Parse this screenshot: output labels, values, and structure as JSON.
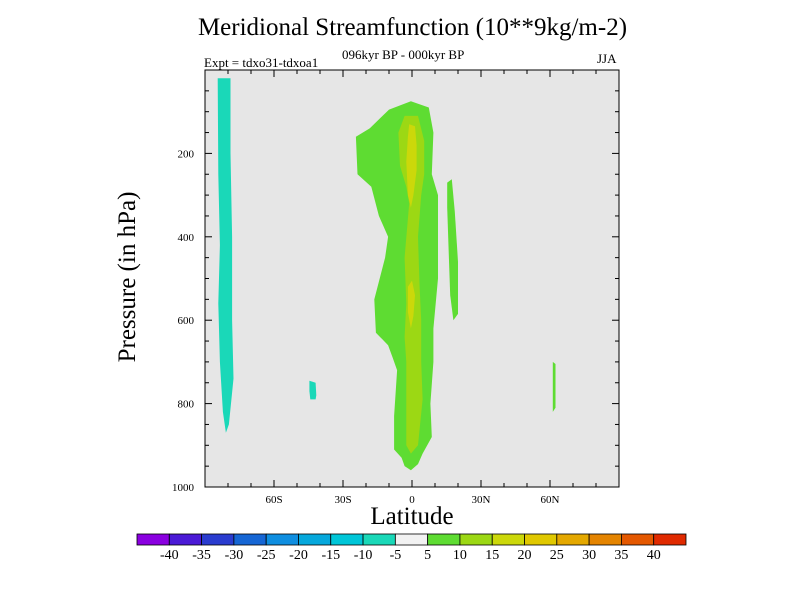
{
  "chart_data": {
    "type": "heatmap",
    "subtype": "filled-contour",
    "title": "Meridional Streamfunction (10**9kg/m-2)",
    "subtitle": "096kyr BP - 000kyr BP",
    "experiment_label": "Expt = tdxo31-tdxoa1",
    "season": "JJA",
    "xlabel": "Latitude",
    "ylabel": "Pressure (in hPa)",
    "xlim": [
      -90,
      90
    ],
    "ylim": [
      1000,
      0
    ],
    "x_ticks": [
      {
        "value": -60,
        "label": "60S"
      },
      {
        "value": -30,
        "label": "30S"
      },
      {
        "value": 0,
        "label": "0"
      },
      {
        "value": 30,
        "label": "30N"
      },
      {
        "value": 60,
        "label": "60N"
      }
    ],
    "y_ticks": [
      {
        "value": 200,
        "label": "200"
      },
      {
        "value": 400,
        "label": "400"
      },
      {
        "value": 600,
        "label": "600"
      },
      {
        "value": 800,
        "label": "800"
      },
      {
        "value": 1000,
        "label": "1000"
      }
    ],
    "colorbar": {
      "levels": [
        -40,
        -35,
        -30,
        -25,
        -20,
        -15,
        -10,
        -5,
        5,
        10,
        15,
        20,
        25,
        30,
        35,
        40
      ],
      "labels": [
        "-40",
        "-35",
        "-30",
        "-25",
        "-20",
        "-15",
        "-10",
        "-5",
        "5",
        "10",
        "15",
        "20",
        "25",
        "30",
        "35",
        "40"
      ],
      "colors": [
        "#8a00e0",
        "#4b1ad6",
        "#2a3ccf",
        "#1666d4",
        "#0f8ee0",
        "#06a8dc",
        "#00c6d8",
        "#1ad8b8",
        "#f2f2f2",
        "#5edc32",
        "#9cd814",
        "#ccd80a",
        "#e0c800",
        "#e4a800",
        "#e48400",
        "#e45800",
        "#e02a00"
      ]
    },
    "background_color": "#e6e6e6",
    "regions": [
      {
        "name": "SH polar negative cell",
        "level_range": [
          -10,
          -5
        ],
        "color": "#1ad8b8",
        "outline": [
          [
            -84.5,
            20
          ],
          [
            -78.9,
            20
          ],
          [
            -78.9,
            200
          ],
          [
            -78.2,
            400
          ],
          [
            -78.2,
            600
          ],
          [
            -77.6,
            740
          ],
          [
            -79.6,
            850
          ],
          [
            -80.9,
            870
          ],
          [
            -82.2,
            820
          ],
          [
            -83.5,
            700
          ],
          [
            -84.2,
            560
          ],
          [
            -83.5,
            420
          ],
          [
            -84.2,
            250
          ]
        ]
      },
      {
        "name": "SH midlatitude small negative patch",
        "level_range": [
          -10,
          -5
        ],
        "color": "#1ad8b8",
        "outline": [
          [
            -44.6,
            745
          ],
          [
            -41.9,
            750
          ],
          [
            -41.6,
            780
          ],
          [
            -41.9,
            790
          ],
          [
            -44.2,
            790
          ],
          [
            -44.6,
            770
          ]
        ]
      },
      {
        "name": "equatorial positive cell",
        "level_range": [
          5,
          10
        ],
        "color": "#5edc32",
        "outline": [
          [
            -10,
            95
          ],
          [
            -0.5,
            75
          ],
          [
            7.3,
            90
          ],
          [
            9.3,
            150
          ],
          [
            8.6,
            250
          ],
          [
            11.3,
            300
          ],
          [
            11.3,
            500
          ],
          [
            9.3,
            620
          ],
          [
            9.3,
            700
          ],
          [
            8,
            800
          ],
          [
            8.6,
            880
          ],
          [
            4.6,
            920
          ],
          [
            2.6,
            945
          ],
          [
            -0.5,
            960
          ],
          [
            -3.2,
            950
          ],
          [
            -4.5,
            930
          ],
          [
            -7.8,
            910
          ],
          [
            -7.8,
            830
          ],
          [
            -6.5,
            720
          ],
          [
            -8.4,
            690
          ],
          [
            -10.4,
            660
          ],
          [
            -15.7,
            630
          ],
          [
            -16.4,
            550
          ],
          [
            -11.7,
            450
          ],
          [
            -10.4,
            400
          ],
          [
            -14.4,
            350
          ],
          [
            -17.7,
            280
          ],
          [
            -23.7,
            250
          ],
          [
            -24.4,
            160
          ],
          [
            -18.4,
            140
          ]
        ]
      },
      {
        "name": "equatorial core",
        "level_range": [
          10,
          15
        ],
        "color": "#9cd814",
        "outline": [
          [
            -3.2,
            110
          ],
          [
            2.6,
            110
          ],
          [
            5.3,
            170
          ],
          [
            5.3,
            250
          ],
          [
            4,
            300
          ],
          [
            2.6,
            400
          ],
          [
            3.3,
            520
          ],
          [
            4,
            600
          ],
          [
            4,
            700
          ],
          [
            4.6,
            790
          ],
          [
            2.6,
            900
          ],
          [
            -0.5,
            920
          ],
          [
            -2.5,
            900
          ],
          [
            -2.5,
            700
          ],
          [
            -3.2,
            640
          ],
          [
            -2.5,
            560
          ],
          [
            -3.2,
            450
          ],
          [
            -1.2,
            320
          ],
          [
            -2.5,
            280
          ],
          [
            -5.2,
            230
          ],
          [
            -5.9,
            150
          ]
        ]
      },
      {
        "name": "equatorial upper maximum",
        "level_range": [
          15,
          20
        ],
        "color": "#ccd80a",
        "outline": [
          [
            -1.2,
            130
          ],
          [
            1.3,
            135
          ],
          [
            2,
            180
          ],
          [
            2,
            240
          ],
          [
            0.6,
            300
          ],
          [
            -0.5,
            330
          ],
          [
            -1.8,
            300
          ],
          [
            -2.5,
            220
          ],
          [
            -1.8,
            160
          ]
        ]
      },
      {
        "name": "equatorial mid-level maximum",
        "level_range": [
          15,
          20
        ],
        "color": "#ccd80a",
        "outline": [
          [
            -1.8,
            520
          ],
          [
            0,
            505
          ],
          [
            1.3,
            540
          ],
          [
            0.6,
            590
          ],
          [
            -0.5,
            620
          ],
          [
            -1.8,
            580
          ]
        ]
      },
      {
        "name": "NH subtropical positive band",
        "level_range": [
          5,
          10
        ],
        "color": "#5edc32",
        "outline": [
          [
            15.3,
            270
          ],
          [
            17.3,
            262
          ],
          [
            18.6,
            340
          ],
          [
            20,
            460
          ],
          [
            20,
            585
          ],
          [
            18,
            600
          ],
          [
            16.6,
            540
          ],
          [
            15.9,
            430
          ],
          [
            15.3,
            330
          ]
        ]
      },
      {
        "name": "NH midlatitude thin positive sliver",
        "level_range": [
          5,
          10
        ],
        "color": "#5edc32",
        "outline": [
          [
            61.2,
            700
          ],
          [
            62.4,
            705
          ],
          [
            62.4,
            810
          ],
          [
            61.2,
            820
          ]
        ]
      }
    ]
  }
}
